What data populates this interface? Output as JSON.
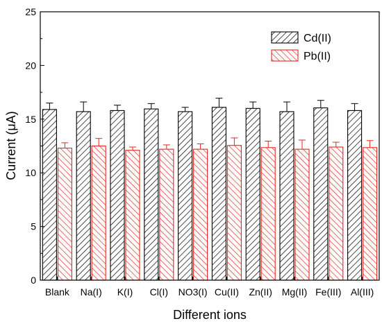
{
  "chart_data": {
    "type": "bar",
    "xlabel": "Different ions",
    "ylabel": "Current (μA)",
    "ylim": [
      0,
      25
    ],
    "yticks": [
      "0",
      "5",
      "10",
      "15",
      "20",
      "25"
    ],
    "categories": [
      "Blank",
      "Na(I)",
      "K(I)",
      "Cl(I)",
      "NO3(I)",
      "Cu(II)",
      "Zn(II)",
      "Mg(II)",
      "Fe(III)",
      "Al(III)"
    ],
    "legend_position": "top-right",
    "grid": false,
    "series": [
      {
        "name": "Cd(II)",
        "color": "#000000",
        "hatch": "diagonal-forward",
        "values": [
          15.9,
          15.7,
          15.8,
          15.95,
          15.7,
          16.1,
          16.0,
          15.7,
          16.05,
          15.8
        ],
        "errors": [
          0.6,
          0.9,
          0.5,
          0.5,
          0.4,
          0.85,
          0.6,
          0.9,
          0.7,
          0.65
        ]
      },
      {
        "name": "Pb(II)",
        "color": "#e8261f",
        "hatch": "diagonal-backward",
        "values": [
          12.3,
          12.5,
          12.1,
          12.2,
          12.2,
          12.55,
          12.35,
          12.2,
          12.4,
          12.35
        ],
        "errors": [
          0.5,
          0.7,
          0.3,
          0.4,
          0.5,
          0.7,
          0.6,
          0.85,
          0.45,
          0.65
        ]
      }
    ]
  }
}
